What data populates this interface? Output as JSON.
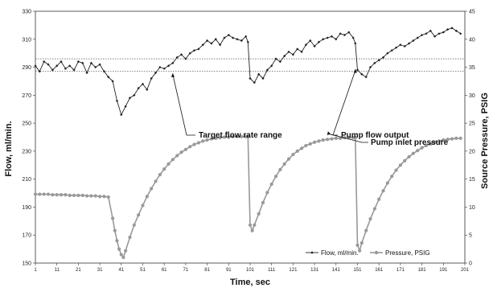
{
  "chart_data": {
    "type": "line",
    "xlabel": "Time, sec",
    "ylabel_left": "Flow, ml/min.",
    "ylabel_right": "Source Pressure, PSIG",
    "xlim": [
      1,
      201
    ],
    "ylim_left": [
      150,
      330
    ],
    "ylim_right": [
      0,
      45
    ],
    "x_ticks": [
      1,
      11,
      21,
      31,
      41,
      51,
      61,
      71,
      81,
      91,
      101,
      111,
      121,
      131,
      141,
      151,
      161,
      171,
      181,
      191,
      201
    ],
    "y_ticks_left": [
      150,
      170,
      190,
      210,
      230,
      250,
      270,
      290,
      310,
      330
    ],
    "y_ticks_right": [
      0,
      5,
      10,
      15,
      20,
      25,
      30,
      35,
      40,
      45
    ],
    "target_range": [
      287,
      296
    ],
    "series": [
      {
        "name": "Flow, ml/min.",
        "axis": "left",
        "color": "#222222",
        "x": [
          1,
          3,
          5,
          7,
          9,
          11,
          13,
          15,
          17,
          19,
          21,
          23,
          25,
          27,
          29,
          31,
          33,
          35,
          37,
          39,
          41,
          43,
          45,
          47,
          49,
          51,
          53,
          55,
          57,
          59,
          61,
          63,
          65,
          67,
          69,
          71,
          73,
          75,
          77,
          79,
          81,
          83,
          85,
          87,
          89,
          91,
          93,
          95,
          97,
          99,
          100,
          101,
          103,
          105,
          107,
          109,
          111,
          113,
          115,
          117,
          119,
          121,
          123,
          125,
          127,
          129,
          131,
          133,
          135,
          137,
          139,
          141,
          143,
          145,
          147,
          149,
          150,
          151,
          153,
          155,
          157,
          159,
          161,
          163,
          165,
          167,
          169,
          171,
          173,
          175,
          177,
          179,
          181,
          183,
          185,
          187,
          189,
          191,
          193,
          195,
          197,
          199
        ],
        "y": [
          291,
          287,
          294,
          292,
          288,
          291,
          294,
          289,
          291,
          288,
          294,
          293,
          286,
          293,
          290,
          292,
          287,
          283,
          280,
          266,
          256,
          262,
          268,
          270,
          275,
          278,
          274,
          282,
          286,
          290,
          289,
          291,
          293,
          297,
          299,
          296,
          300,
          302,
          303,
          306,
          309,
          307,
          310,
          306,
          311,
          313,
          311,
          310,
          309,
          312,
          308,
          282,
          279,
          285,
          282,
          288,
          291,
          296,
          294,
          298,
          301,
          299,
          303,
          301,
          306,
          309,
          305,
          308,
          310,
          311,
          312,
          310,
          314,
          313,
          315,
          311,
          307,
          288,
          285,
          283,
          290,
          293,
          295,
          297,
          300,
          302,
          304,
          306,
          305,
          307,
          309,
          311,
          313,
          314,
          316,
          312,
          314,
          315,
          317,
          318,
          316,
          314
        ]
      },
      {
        "name": "Pressure, PSIG",
        "axis": "right",
        "color": "#999999",
        "x": [
          1,
          3,
          5,
          7,
          9,
          11,
          13,
          15,
          17,
          19,
          21,
          23,
          25,
          27,
          29,
          31,
          33,
          35,
          37,
          38,
          39,
          40,
          41,
          42,
          43,
          45,
          47,
          49,
          51,
          53,
          55,
          57,
          59,
          61,
          63,
          65,
          67,
          69,
          71,
          73,
          75,
          77,
          79,
          81,
          83,
          85,
          87,
          89,
          91,
          93,
          95,
          97,
          99,
          100,
          101,
          102,
          103,
          105,
          107,
          109,
          111,
          113,
          115,
          117,
          119,
          121,
          123,
          125,
          127,
          129,
          131,
          133,
          135,
          137,
          139,
          141,
          143,
          145,
          147,
          149,
          150,
          151,
          152,
          153,
          155,
          157,
          159,
          161,
          163,
          165,
          167,
          169,
          171,
          173,
          175,
          177,
          179,
          181,
          183,
          185,
          187,
          189,
          191,
          193,
          195,
          197,
          199
        ],
        "y": [
          12.3,
          12.3,
          12.3,
          12.3,
          12.2,
          12.2,
          12.2,
          12.2,
          12.1,
          12.1,
          12.1,
          12.1,
          12.0,
          12.0,
          12.0,
          11.9,
          11.9,
          11.8,
          8.0,
          5.8,
          4.0,
          2.5,
          1.5,
          1.0,
          2.2,
          4.6,
          6.8,
          8.6,
          10.3,
          11.9,
          13.3,
          14.6,
          15.8,
          16.8,
          17.7,
          18.5,
          19.2,
          19.8,
          20.3,
          20.8,
          21.2,
          21.5,
          21.8,
          22.0,
          22.2,
          22.3,
          22.4,
          22.5,
          22.5,
          22.6,
          22.6,
          22.6,
          22.6,
          22.6,
          6.8,
          5.8,
          6.8,
          8.8,
          10.8,
          12.6,
          14.1,
          15.5,
          16.7,
          17.7,
          18.6,
          19.4,
          20.0,
          20.5,
          21.0,
          21.3,
          21.6,
          21.8,
          22.0,
          22.1,
          22.2,
          22.3,
          22.3,
          22.4,
          22.4,
          22.4,
          22.4,
          3.2,
          2.2,
          3.6,
          5.8,
          7.9,
          9.7,
          11.4,
          12.9,
          14.3,
          15.5,
          16.6,
          17.5,
          18.3,
          19.0,
          19.6,
          20.1,
          20.6,
          21.0,
          21.3,
          21.6,
          21.8,
          22.0,
          22.1,
          22.2,
          22.3,
          22.3
        ]
      }
    ],
    "annotations": [
      {
        "text": "Target flow rate range",
        "points_to_x": 65,
        "points_to_y": 287
      },
      {
        "text": "Pump flow output",
        "points_to_x": 150,
        "points_to_y": 290
      },
      {
        "text": "Pump inlet pressure",
        "points_to_x": 141,
        "points_to_y": 22.4
      }
    ],
    "legend": {
      "placement": "bottom-right",
      "entries": [
        "Flow, ml/min.",
        "Pressure, PSIG"
      ]
    }
  }
}
